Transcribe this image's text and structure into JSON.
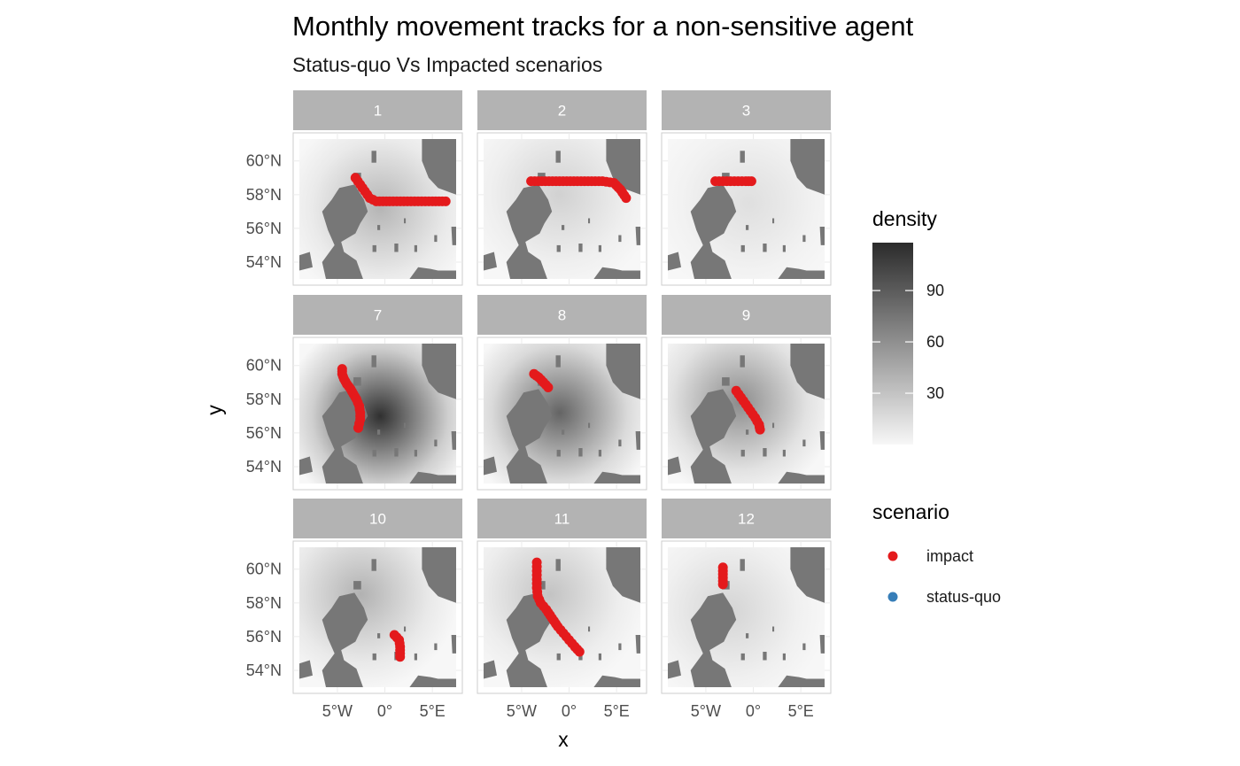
{
  "chart_data": {
    "type": "scatter",
    "title": "Monthly movement tracks for a non-sensitive agent",
    "subtitle": "Status-quo Vs Impacted scenarios",
    "xlabel": "x",
    "ylabel": "y",
    "xlim": [
      -9,
      7.5
    ],
    "ylim": [
      53,
      61.3
    ],
    "x_ticks": [
      {
        "value": -5,
        "label": "5°W"
      },
      {
        "value": 0,
        "label": "0°"
      },
      {
        "value": 5,
        "label": "5°E"
      }
    ],
    "y_ticks": [
      {
        "value": 54,
        "label": "54°N"
      },
      {
        "value": 56,
        "label": "56°N"
      },
      {
        "value": 58,
        "label": "58°N"
      },
      {
        "value": 60,
        "label": "60°N"
      }
    ],
    "facet_by": "month",
    "facets": [
      {
        "label": "1",
        "density_peak": {
          "lon": -0.5,
          "lat": 57.2,
          "value": 38
        },
        "track": [
          [
            -3.1,
            59.0
          ],
          [
            -2.6,
            58.6
          ],
          [
            -2.1,
            58.2
          ],
          [
            -1.6,
            57.8
          ],
          [
            -0.9,
            57.6
          ],
          [
            0.5,
            57.6
          ],
          [
            2,
            57.6
          ],
          [
            3.5,
            57.6
          ],
          [
            5,
            57.6
          ],
          [
            6.4,
            57.6
          ]
        ]
      },
      {
        "label": "2",
        "density_peak": {
          "lon": -1.0,
          "lat": 58.0,
          "value": 22
        },
        "track": [
          [
            -4.0,
            58.8
          ],
          [
            -2.5,
            58.8
          ],
          [
            -1,
            58.8
          ],
          [
            0.5,
            58.8
          ],
          [
            2,
            58.8
          ],
          [
            3.5,
            58.8
          ],
          [
            4.7,
            58.7
          ],
          [
            5.4,
            58.3
          ],
          [
            6.0,
            57.8
          ]
        ]
      },
      {
        "label": "3",
        "density_peak": {
          "lon": -0.5,
          "lat": 57.5,
          "value": 14
        },
        "track": [
          [
            -4.0,
            58.8
          ],
          [
            -3.2,
            58.8
          ],
          [
            -2.4,
            58.8
          ],
          [
            -1.6,
            58.8
          ],
          [
            -0.8,
            58.8
          ],
          [
            -0.2,
            58.8
          ]
        ]
      },
      {
        "label": "7",
        "density_peak": {
          "lon": -0.5,
          "lat": 57.0,
          "value": 115
        },
        "track": [
          [
            -4.5,
            59.8
          ],
          [
            -4.5,
            59.5
          ],
          [
            -4.3,
            59.2
          ],
          [
            -4.0,
            58.9
          ],
          [
            -3.6,
            58.6
          ],
          [
            -3.3,
            58.3
          ],
          [
            -3.0,
            58.0
          ],
          [
            -2.7,
            57.6
          ],
          [
            -2.6,
            57.2
          ],
          [
            -2.6,
            56.8
          ],
          [
            -2.8,
            56.3
          ]
        ]
      },
      {
        "label": "8",
        "density_peak": {
          "lon": -1.0,
          "lat": 57.2,
          "value": 85
        },
        "track": [
          [
            -3.7,
            59.5
          ],
          [
            -3.2,
            59.3
          ],
          [
            -2.7,
            59.0
          ],
          [
            -2.2,
            58.7
          ]
        ]
      },
      {
        "label": "9",
        "density_peak": {
          "lon": -1.5,
          "lat": 57.8,
          "value": 62
        },
        "track": [
          [
            -1.8,
            58.5
          ],
          [
            -1.3,
            58.1
          ],
          [
            -0.8,
            57.7
          ],
          [
            -0.3,
            57.3
          ],
          [
            0.2,
            56.9
          ],
          [
            0.6,
            56.5
          ],
          [
            0.7,
            56.2
          ]
        ]
      },
      {
        "label": "10",
        "density_peak": {
          "lon": -2.5,
          "lat": 58.5,
          "value": 40
        },
        "track": [
          [
            1.0,
            56.1
          ],
          [
            1.5,
            55.8
          ],
          [
            1.6,
            55.4
          ],
          [
            1.6,
            55.0
          ],
          [
            1.6,
            54.8
          ]
        ]
      },
      {
        "label": "11",
        "density_peak": {
          "lon": -2.0,
          "lat": 58.5,
          "value": 30
        },
        "track": [
          [
            -3.4,
            60.4
          ],
          [
            -3.4,
            59.9
          ],
          [
            -3.4,
            59.4
          ],
          [
            -3.4,
            58.9
          ],
          [
            -3.3,
            58.4
          ],
          [
            -3.0,
            58.0
          ],
          [
            -2.4,
            57.6
          ],
          [
            -1.8,
            57.1
          ],
          [
            -1.2,
            56.6
          ],
          [
            -0.6,
            56.2
          ],
          [
            0,
            55.8
          ],
          [
            0.6,
            55.4
          ],
          [
            1.1,
            55.1
          ]
        ]
      },
      {
        "label": "12",
        "density_peak": {
          "lon": -2.5,
          "lat": 57.5,
          "value": 20
        },
        "track": [
          [
            -3.2,
            60.1
          ],
          [
            -3.2,
            59.7
          ],
          [
            -3.2,
            59.3
          ],
          [
            -3.2,
            59.1
          ]
        ]
      }
    ],
    "series": [
      {
        "name": "impact",
        "color": "#E41A1C"
      },
      {
        "name": "status-quo",
        "color": "#377EB8"
      }
    ],
    "legend": {
      "density": {
        "title": "density",
        "ticks": [
          30,
          60,
          90
        ],
        "range": [
          0,
          118
        ],
        "low_color": "#f7f7f7",
        "high_color": "#2b2b2b"
      },
      "scenario": {
        "title": "scenario"
      },
      "placement": "right"
    },
    "land_color": "#777777",
    "grid": true
  }
}
